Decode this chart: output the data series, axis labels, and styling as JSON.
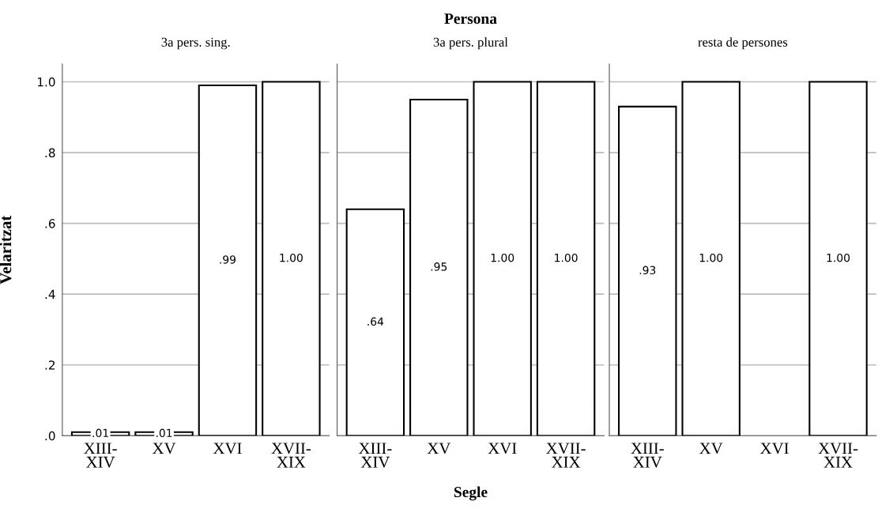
{
  "chart_data": [
    {
      "type": "bar",
      "subtitle": "3a pers. sing.",
      "ylabel": "Velaritzat",
      "categories": [
        "XIII-\nXIV",
        "XV",
        "XVI",
        "XVII-\nXIX"
      ],
      "values": [
        0.01,
        0.01,
        0.99,
        1.0
      ],
      "value_labels": [
        ".01",
        ".01",
        ".99",
        "1.00"
      ],
      "color": "#ffffff",
      "ylim": [
        0,
        1.05
      ],
      "yticks": [
        {
          "value": 0,
          "label": ".0"
        },
        {
          "value": 0.2,
          "label": ".2"
        },
        {
          "value": 0.4,
          "label": ".4"
        },
        {
          "value": 0.6,
          "label": ".6"
        },
        {
          "value": 0.8,
          "label": ".8"
        },
        {
          "value": 1.0,
          "label": "1.0"
        }
      ],
      "grid": "y"
    },
    {
      "type": "bar",
      "title": "Persona",
      "subtitle": "3a pers. plural",
      "xlabel": "Segle",
      "categories": [
        "XIII-\nXIV",
        "XV",
        "XVI",
        "XVII-\nXIX"
      ],
      "values": [
        0.64,
        0.95,
        1.0,
        1.0
      ],
      "value_labels": [
        ".64",
        ".95",
        "1.00",
        "1.00"
      ],
      "color": "#ffffff",
      "ylim": [
        0,
        1.05
      ],
      "grid": "y",
      "tick_labels": "x"
    },
    {
      "type": "bar",
      "subtitle": "resta de persones",
      "categories": [
        "XIII-\nXIV",
        "XV",
        "XVI",
        "XVII-\nXIX"
      ],
      "values": [
        0.93,
        1.0,
        null,
        1.0
      ],
      "value_labels": [
        ".93",
        "1.00",
        null,
        "1.00"
      ],
      "color": "#ffffff",
      "ylim": [
        0,
        1.05
      ],
      "grid": "y",
      "tick_labels": "x"
    }
  ]
}
